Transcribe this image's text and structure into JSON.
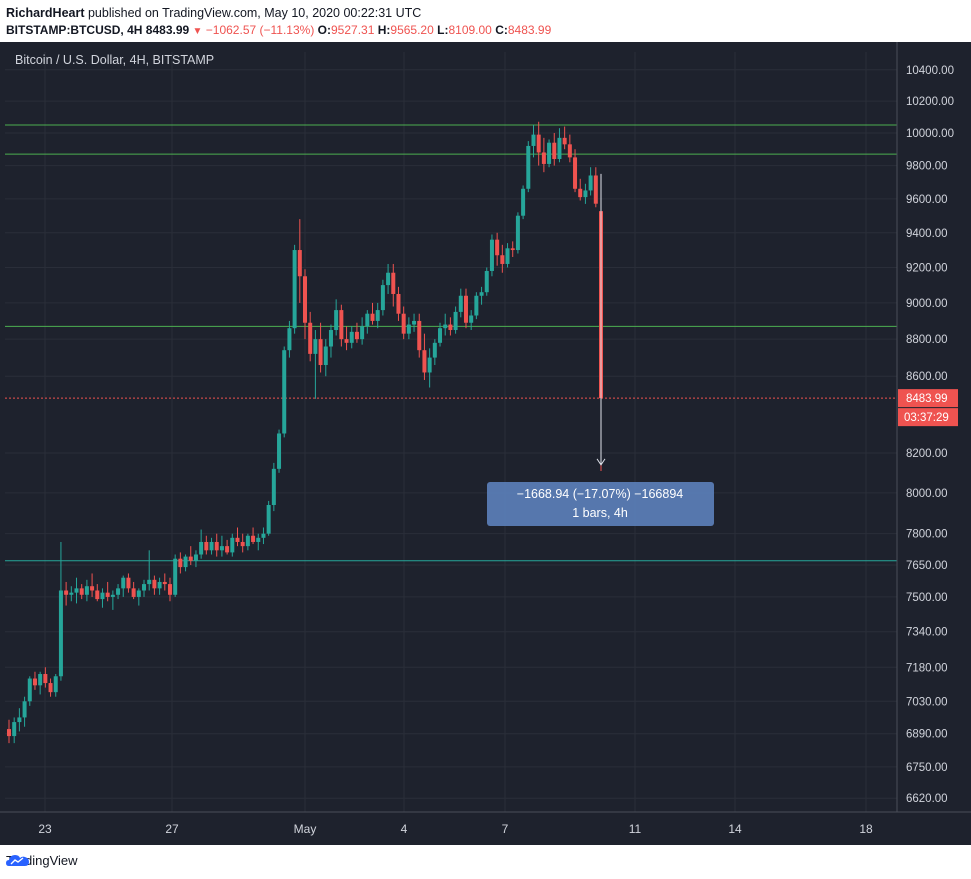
{
  "header": {
    "author": "RichardHeart",
    "published_text": "published on TradingView.com, May 10, 2020 00:22:31 UTC",
    "symbol": "BITSTAMP:BTCUSD, 4H",
    "last": "8483.99",
    "change": "−1062.57 (−11.13%)",
    "o_label": "O:",
    "o": "9527.31",
    "h_label": "H:",
    "h": "9565.20",
    "l_label": "L:",
    "l": "8109.00",
    "c_label": "C:",
    "c": "8483.99"
  },
  "chart_title": "Bitcoin / U.S. Dollar, 4H, BITSTAMP",
  "price_badge": "8483.99",
  "timer_badge": "03:37:29",
  "measure": {
    "line1": "−1668.94 (−17.07%) −166894",
    "line2": "1 bars, 4h"
  },
  "footer": {
    "brand": "TradingView"
  },
  "colors": {
    "up": "#26a69a",
    "down": "#ef5350",
    "bg": "#1e222d",
    "grid": "#2a2e39",
    "hline": "#4caf50",
    "hline2": "#26a69a",
    "measure": "#5b7fb8"
  },
  "chart_data": {
    "type": "candlestick",
    "title": "Bitcoin / U.S. Dollar, 4H, BITSTAMP",
    "y_ticks": [
      "10400.00",
      "10200.00",
      "10000.00",
      "9800.00",
      "9600.00",
      "9400.00",
      "9200.00",
      "9000.00",
      "8800.00",
      "8600.00",
      "8200.00",
      "8000.00",
      "7800.00",
      "7650.00",
      "7500.00",
      "7340.00",
      "7180.00",
      "7030.00",
      "6890.00",
      "6750.00",
      "6620.00"
    ],
    "x_ticks": [
      "23",
      "27",
      "May",
      "4",
      "7",
      "11",
      "14",
      "18"
    ],
    "scale": "log",
    "horizontal_levels": [
      10050,
      9870,
      8870,
      7670
    ],
    "last_price": 8483.99,
    "candles": [
      [
        6910,
        6950,
        6850,
        6880
      ],
      [
        6880,
        6960,
        6850,
        6940
      ],
      [
        6940,
        7000,
        6900,
        6960
      ],
      [
        6960,
        7050,
        6920,
        7030
      ],
      [
        7030,
        7140,
        7010,
        7130
      ],
      [
        7130,
        7160,
        7080,
        7100
      ],
      [
        7100,
        7160,
        7060,
        7150
      ],
      [
        7150,
        7180,
        7090,
        7110
      ],
      [
        7110,
        7130,
        7050,
        7070
      ],
      [
        7070,
        7150,
        7050,
        7140
      ],
      [
        7140,
        7760,
        7120,
        7530
      ],
      [
        7530,
        7570,
        7460,
        7510
      ],
      [
        7510,
        7550,
        7480,
        7520
      ],
      [
        7520,
        7590,
        7470,
        7540
      ],
      [
        7540,
        7560,
        7490,
        7510
      ],
      [
        7510,
        7580,
        7480,
        7550
      ],
      [
        7550,
        7610,
        7500,
        7530
      ],
      [
        7530,
        7560,
        7480,
        7490
      ],
      [
        7490,
        7540,
        7450,
        7520
      ],
      [
        7520,
        7570,
        7480,
        7500
      ],
      [
        7500,
        7530,
        7440,
        7510
      ],
      [
        7510,
        7560,
        7490,
        7540
      ],
      [
        7540,
        7600,
        7500,
        7590
      ],
      [
        7590,
        7610,
        7520,
        7540
      ],
      [
        7540,
        7570,
        7490,
        7500
      ],
      [
        7500,
        7540,
        7460,
        7530
      ],
      [
        7530,
        7580,
        7500,
        7560
      ],
      [
        7560,
        7720,
        7530,
        7580
      ],
      [
        7580,
        7600,
        7510,
        7540
      ],
      [
        7540,
        7590,
        7510,
        7570
      ],
      [
        7570,
        7610,
        7530,
        7560
      ],
      [
        7560,
        7590,
        7480,
        7510
      ],
      [
        7510,
        7700,
        7500,
        7680
      ],
      [
        7680,
        7710,
        7610,
        7640
      ],
      [
        7640,
        7700,
        7620,
        7690
      ],
      [
        7690,
        7740,
        7650,
        7670
      ],
      [
        7670,
        7720,
        7640,
        7700
      ],
      [
        7700,
        7820,
        7680,
        7760
      ],
      [
        7760,
        7790,
        7700,
        7720
      ],
      [
        7720,
        7780,
        7700,
        7760
      ],
      [
        7760,
        7800,
        7690,
        7720
      ],
      [
        7720,
        7790,
        7690,
        7740
      ],
      [
        7740,
        7770,
        7700,
        7710
      ],
      [
        7710,
        7800,
        7690,
        7780
      ],
      [
        7780,
        7830,
        7740,
        7760
      ],
      [
        7760,
        7800,
        7710,
        7740
      ],
      [
        7740,
        7800,
        7720,
        7790
      ],
      [
        7790,
        7830,
        7750,
        7760
      ],
      [
        7760,
        7800,
        7720,
        7780
      ],
      [
        7780,
        7830,
        7750,
        7800
      ],
      [
        7800,
        7960,
        7790,
        7940
      ],
      [
        7940,
        8150,
        7910,
        8120
      ],
      [
        8120,
        8320,
        8100,
        8300
      ],
      [
        8300,
        8760,
        8280,
        8740
      ],
      [
        8740,
        8900,
        8700,
        8860
      ],
      [
        8860,
        9330,
        8830,
        9300
      ],
      [
        9300,
        9480,
        9000,
        9150
      ],
      [
        9150,
        9190,
        8800,
        8890
      ],
      [
        8890,
        8950,
        8680,
        8720
      ],
      [
        8720,
        8850,
        8480,
        8800
      ],
      [
        8800,
        8890,
        8620,
        8660
      ],
      [
        8660,
        8800,
        8600,
        8760
      ],
      [
        8760,
        8880,
        8700,
        8850
      ],
      [
        8850,
        9020,
        8820,
        8960
      ],
      [
        8960,
        8990,
        8760,
        8800
      ],
      [
        8800,
        8870,
        8740,
        8780
      ],
      [
        8780,
        8870,
        8750,
        8840
      ],
      [
        8840,
        8890,
        8780,
        8800
      ],
      [
        8800,
        8920,
        8770,
        8870
      ],
      [
        8870,
        8960,
        8830,
        8940
      ],
      [
        8940,
        9000,
        8880,
        8900
      ],
      [
        8900,
        9000,
        8860,
        8960
      ],
      [
        8960,
        9130,
        8930,
        9100
      ],
      [
        9100,
        9220,
        9050,
        9170
      ],
      [
        9170,
        9220,
        8980,
        9050
      ],
      [
        9050,
        9090,
        8900,
        8940
      ],
      [
        8940,
        8980,
        8800,
        8830
      ],
      [
        8830,
        8920,
        8800,
        8880
      ],
      [
        8880,
        8940,
        8840,
        8900
      ],
      [
        8900,
        8940,
        8700,
        8740
      ],
      [
        8740,
        8830,
        8580,
        8620
      ],
      [
        8620,
        8750,
        8540,
        8700
      ],
      [
        8700,
        8800,
        8660,
        8780
      ],
      [
        8780,
        8890,
        8760,
        8860
      ],
      [
        8860,
        8940,
        8820,
        8880
      ],
      [
        8880,
        8920,
        8820,
        8850
      ],
      [
        8850,
        8980,
        8830,
        8950
      ],
      [
        8950,
        9080,
        8920,
        9040
      ],
      [
        9040,
        9080,
        8860,
        8890
      ],
      [
        8890,
        8960,
        8850,
        8930
      ],
      [
        8930,
        9060,
        8910,
        9040
      ],
      [
        9040,
        9090,
        8990,
        9060
      ],
      [
        9060,
        9200,
        9040,
        9180
      ],
      [
        9180,
        9390,
        9150,
        9360
      ],
      [
        9360,
        9400,
        9210,
        9270
      ],
      [
        9270,
        9330,
        9170,
        9220
      ],
      [
        9220,
        9340,
        9200,
        9310
      ],
      [
        9310,
        9350,
        9260,
        9300
      ],
      [
        9300,
        9520,
        9280,
        9500
      ],
      [
        9500,
        9680,
        9480,
        9660
      ],
      [
        9660,
        9950,
        9640,
        9920
      ],
      [
        9920,
        10050,
        9850,
        9990
      ],
      [
        9990,
        10070,
        9800,
        9880
      ],
      [
        9880,
        9970,
        9760,
        9810
      ],
      [
        9810,
        9960,
        9790,
        9940
      ],
      [
        9940,
        10000,
        9800,
        9840
      ],
      [
        9840,
        10030,
        9820,
        9970
      ],
      [
        9970,
        10040,
        9900,
        9930
      ],
      [
        9930,
        9990,
        9820,
        9850
      ],
      [
        9850,
        9900,
        9640,
        9660
      ],
      [
        9660,
        9720,
        9590,
        9610
      ],
      [
        9610,
        9690,
        9570,
        9650
      ],
      [
        9650,
        9790,
        9620,
        9740
      ],
      [
        9740,
        9790,
        9550,
        9571
      ],
      [
        9527,
        9565,
        8109,
        8484
      ]
    ]
  }
}
